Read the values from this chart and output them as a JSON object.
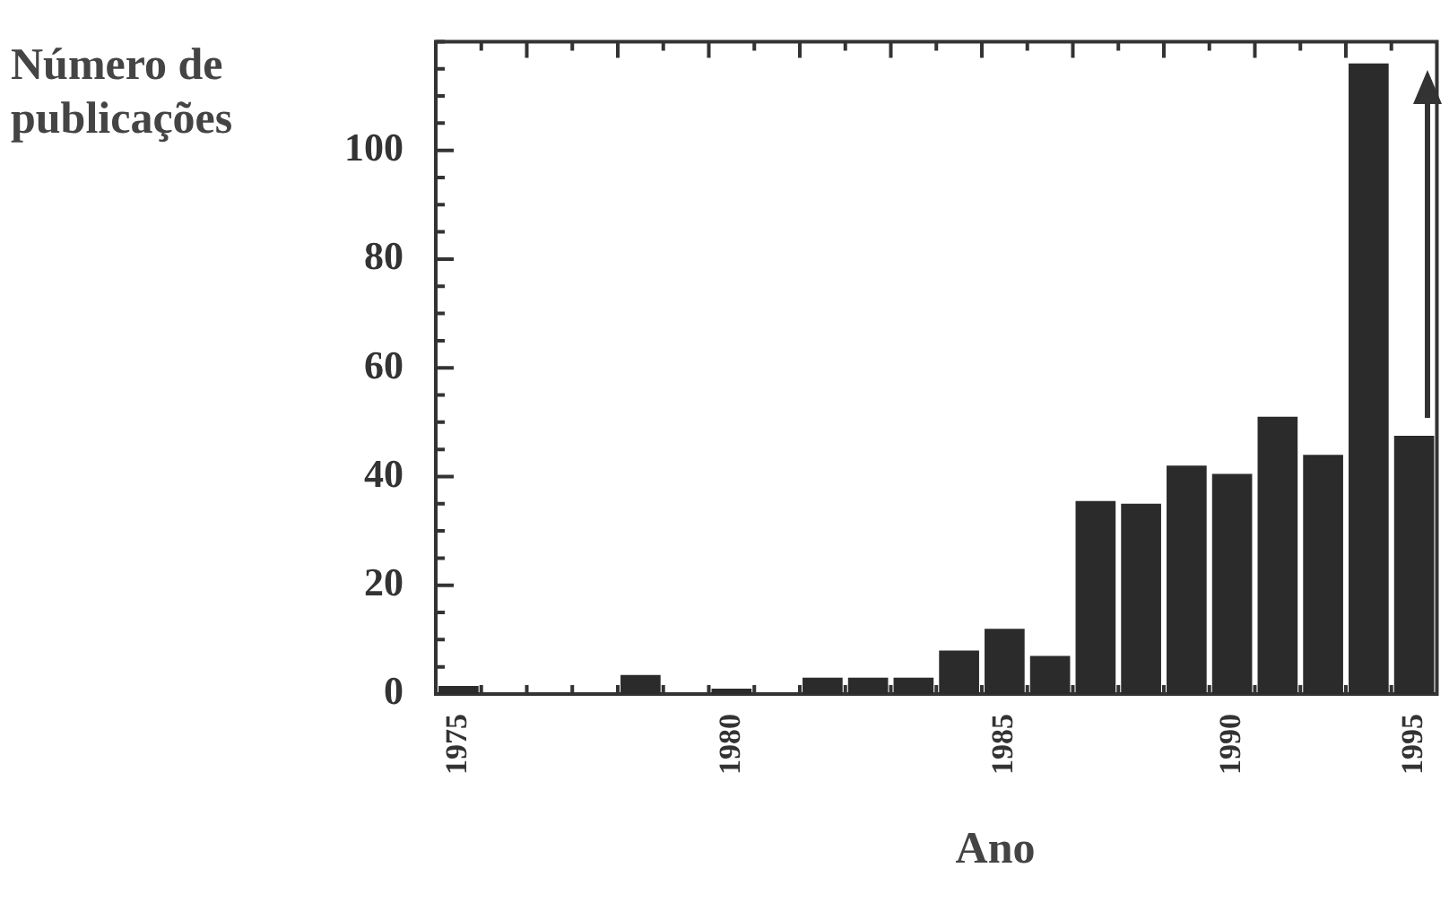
{
  "chart_data": {
    "type": "bar",
    "xlabel": "Ano",
    "ylabel": "Número de publicações",
    "categories": [
      "1975",
      null,
      null,
      null,
      null,
      null,
      "1980",
      null,
      null,
      null,
      null,
      null,
      "1985",
      null,
      null,
      null,
      null,
      "1990",
      null,
      null,
      null,
      "1995"
    ],
    "values": [
      1.5,
      0,
      0,
      0,
      3.5,
      0,
      1,
      0,
      3,
      3,
      3,
      8,
      12,
      7,
      35.5,
      35,
      42,
      40.5,
      51,
      44,
      116,
      47.5
    ],
    "color": "#2b2b2b",
    "ylim": [
      0,
      120
    ],
    "yticks": [
      0,
      {
        "value": 5,
        "label": null
      },
      {
        "value": 10,
        "label": null
      },
      {
        "value": 15,
        "label": null
      },
      20,
      {
        "value": 25,
        "label": null
      },
      {
        "value": 30,
        "label": null
      },
      {
        "value": 35,
        "label": null
      },
      40,
      {
        "value": 45,
        "label": null
      },
      {
        "value": 50,
        "label": null
      },
      {
        "value": 55,
        "label": null
      },
      60,
      {
        "value": 65,
        "label": null
      },
      {
        "value": 70,
        "label": null
      },
      {
        "value": 75,
        "label": null
      },
      80,
      {
        "value": 85,
        "label": null
      },
      {
        "value": 90,
        "label": null
      },
      {
        "value": 95,
        "label": null
      },
      100,
      {
        "value": 105,
        "label": null
      },
      {
        "value": 110,
        "label": null
      },
      {
        "value": 115,
        "label": null
      },
      {
        "value": 120,
        "label": null
      }
    ],
    "grid": false,
    "legend": false
  }
}
